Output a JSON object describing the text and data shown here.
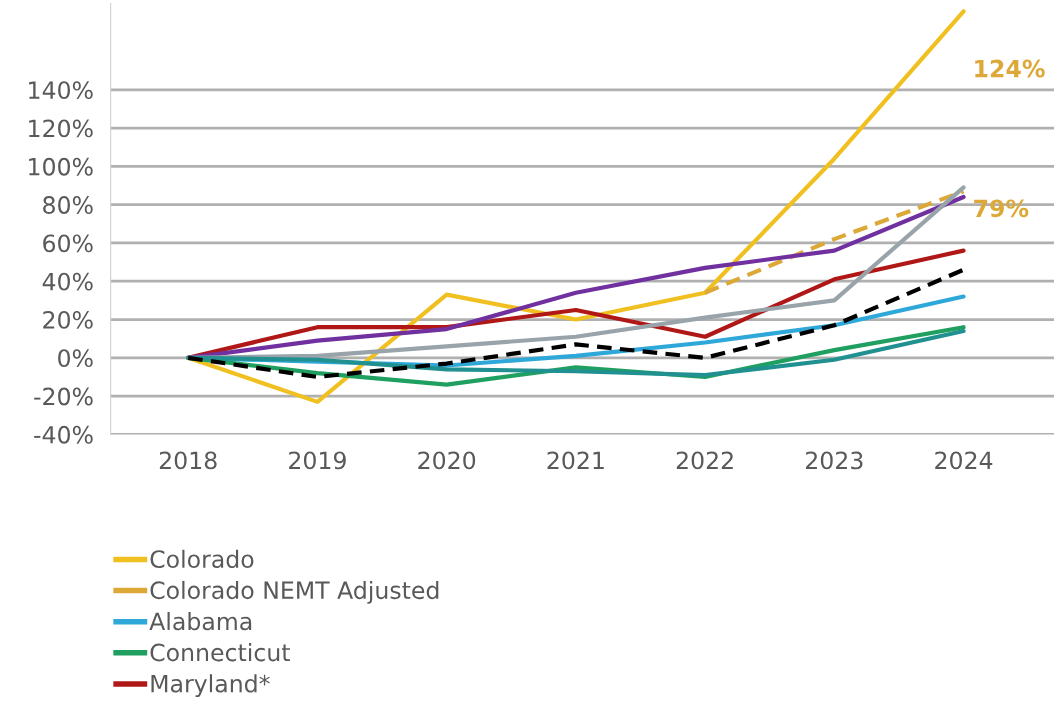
{
  "chart_data": {
    "type": "line",
    "categories": [
      "2018",
      "2019",
      "2020",
      "2021",
      "2022",
      "2023",
      "2024"
    ],
    "series": [
      {
        "name": "Colorado",
        "color": "#f0c020",
        "values": [
          0,
          -23,
          33,
          20,
          34,
          104,
          181
        ]
      },
      {
        "name": "Colorado NEMT Adjusted",
        "color": "#dca838",
        "line_style": "dashed",
        "values": [
          null,
          null,
          null,
          null,
          34,
          62,
          87
        ]
      },
      {
        "name": "Alabama",
        "color": "#2ea8d8",
        "values": [
          0,
          -2,
          -4,
          1,
          8,
          17,
          32
        ]
      },
      {
        "name": "Connecticut",
        "color": "#20a060",
        "values": [
          0,
          -8,
          -14,
          -5,
          -10,
          4,
          16
        ]
      },
      {
        "name": "Maryland*",
        "color": "#b01818",
        "values": [
          0,
          16,
          16,
          25,
          11,
          41,
          56
        ]
      },
      {
        "color": "#7030a0",
        "values": [
          0,
          9,
          15,
          34,
          47,
          56,
          84
        ]
      },
      {
        "color": "#98a4aa",
        "values": [
          0,
          1,
          6,
          11,
          21,
          30,
          89
        ]
      },
      {
        "color": "#209090",
        "values": [
          0,
          -1,
          -6,
          -7,
          -9,
          -1,
          14
        ]
      },
      {
        "color": "#000000",
        "line_style": "dashed",
        "values": [
          0,
          -10,
          -3,
          7,
          0,
          17,
          46
        ]
      }
    ],
    "ylim": [
      -40,
      185
    ],
    "yticks": [
      {
        "value": -40,
        "label": "-40%"
      },
      {
        "value": -20,
        "label": "-20%"
      },
      {
        "value": 0,
        "label": "0%"
      },
      {
        "value": 20,
        "label": "20%"
      },
      {
        "value": 40,
        "label": "40%"
      },
      {
        "value": 60,
        "label": "60%"
      },
      {
        "value": 80,
        "label": "80%"
      },
      {
        "value": 100,
        "label": "100%"
      },
      {
        "value": 120,
        "label": "120%"
      },
      {
        "value": 140,
        "label": "140%"
      }
    ],
    "annotations": [
      "124%",
      "79%"
    ],
    "grid": "y",
    "legend": "bottom",
    "marker": "none",
    "line_style": "solid"
  }
}
